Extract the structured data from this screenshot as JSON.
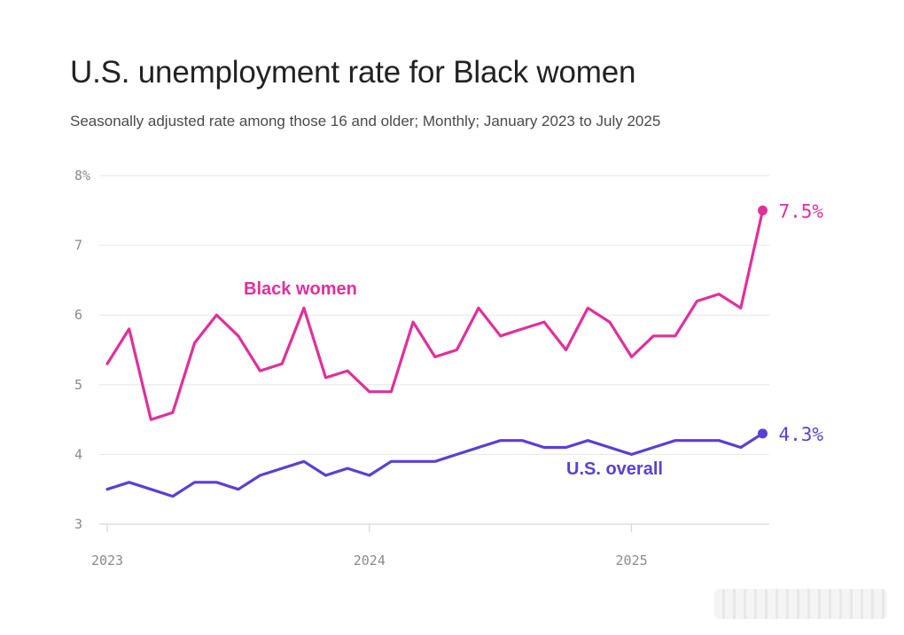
{
  "chart_data": {
    "type": "line",
    "title": "U.S. unemployment rate for Black women",
    "subtitle": "Seasonally adjusted rate among those 16 and older; Monthly; January 2023 to July 2025",
    "x": [
      "2023-01",
      "2023-02",
      "2023-03",
      "2023-04",
      "2023-05",
      "2023-06",
      "2023-07",
      "2023-08",
      "2023-09",
      "2023-10",
      "2023-11",
      "2023-12",
      "2024-01",
      "2024-02",
      "2024-03",
      "2024-04",
      "2024-05",
      "2024-06",
      "2024-07",
      "2024-08",
      "2024-09",
      "2024-10",
      "2024-11",
      "2024-12",
      "2025-01",
      "2025-02",
      "2025-03",
      "2025-04",
      "2025-05",
      "2025-06",
      "2025-07"
    ],
    "x_tick_labels": [
      "2023",
      "2024",
      "2025"
    ],
    "y_tick_labels": [
      "8%",
      "7",
      "6",
      "5",
      "4",
      "3"
    ],
    "ylim": [
      3,
      8
    ],
    "grid": true,
    "series": [
      {
        "name": "Black women",
        "color": "#e0309a",
        "values": [
          5.3,
          5.8,
          4.5,
          4.6,
          5.6,
          6.0,
          5.7,
          5.2,
          5.3,
          6.1,
          5.1,
          5.2,
          4.9,
          4.9,
          5.9,
          5.4,
          5.5,
          6.1,
          5.7,
          5.8,
          5.9,
          5.5,
          6.1,
          5.9,
          5.4,
          5.7,
          5.7,
          6.2,
          6.3,
          6.1,
          7.5
        ],
        "end_label": "7.5%"
      },
      {
        "name": "U.S. overall",
        "color": "#5b3fd4",
        "values": [
          3.5,
          3.6,
          3.5,
          3.4,
          3.6,
          3.6,
          3.5,
          3.7,
          3.8,
          3.9,
          3.7,
          3.8,
          3.7,
          3.9,
          3.9,
          3.9,
          4.0,
          4.1,
          4.2,
          4.2,
          4.1,
          4.1,
          4.2,
          4.1,
          4.0,
          4.1,
          4.2,
          4.2,
          4.2,
          4.1,
          4.3
        ],
        "end_label": "4.3%"
      }
    ]
  }
}
